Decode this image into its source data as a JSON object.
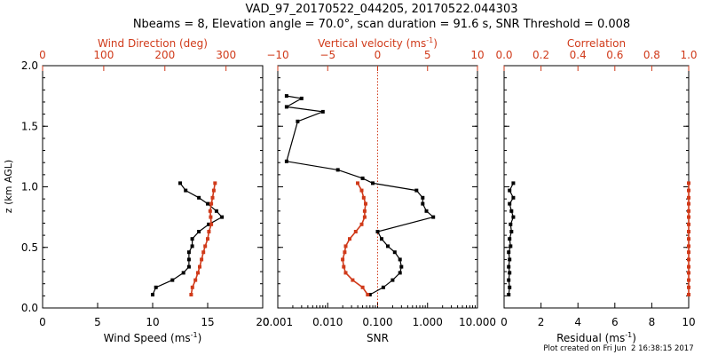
{
  "title_line1": "VAD_97_20170522_044205, 20170522.044303",
  "title_line2": "Nbeams = 8, Elevation angle = 70.0°, scan duration = 91.6 s, SNR Threshold = 0.008",
  "footer": "Plot created on Fri Jun  2 16:38:15 2017",
  "colors": {
    "primary": "#000000",
    "secondary": "#d03a1a"
  },
  "chart_data": [
    {
      "type": "line",
      "ylabel": "z (km AGL)",
      "ylim": [
        0,
        2.0
      ],
      "yticks": [
        "0.0",
        "0.5",
        "1.0",
        "1.5",
        "2.0"
      ],
      "bottom_axis": {
        "label": "Wind Speed (ms",
        "label_sup": "-1",
        "label_end": ")",
        "xlim": [
          0,
          20
        ],
        "ticks": [
          "0",
          "5",
          "10",
          "15",
          "20"
        ]
      },
      "top_axis": {
        "label": "Wind Direction (deg)",
        "xlim": [
          0,
          360
        ],
        "ticks": [
          "0",
          "100",
          "200",
          "300"
        ]
      },
      "series": [
        {
          "axis": "bottom",
          "color": "black",
          "points": [
            [
              10.0,
              0.11
            ],
            [
              10.3,
              0.17
            ],
            [
              11.8,
              0.23
            ],
            [
              12.8,
              0.29
            ],
            [
              13.3,
              0.34
            ],
            [
              13.3,
              0.4
            ],
            [
              13.3,
              0.46
            ],
            [
              13.6,
              0.51
            ],
            [
              13.6,
              0.57
            ],
            [
              14.2,
              0.63
            ],
            [
              15.1,
              0.69
            ],
            [
              16.3,
              0.75
            ],
            [
              15.8,
              0.8
            ],
            [
              15.0,
              0.86
            ],
            [
              14.2,
              0.91
            ],
            [
              13.0,
              0.97
            ],
            [
              12.5,
              1.03
            ]
          ]
        },
        {
          "axis": "top",
          "color": "red",
          "points": [
            [
              243,
              0.11
            ],
            [
              245,
              0.17
            ],
            [
              250,
              0.23
            ],
            [
              254,
              0.29
            ],
            [
              257,
              0.34
            ],
            [
              260,
              0.4
            ],
            [
              263,
              0.46
            ],
            [
              266,
              0.51
            ],
            [
              270,
              0.57
            ],
            [
              272,
              0.63
            ],
            [
              276,
              0.69
            ],
            [
              275,
              0.75
            ],
            [
              274,
              0.8
            ],
            [
              276,
              0.86
            ],
            [
              278,
              0.91
            ],
            [
              280,
              0.97
            ],
            [
              282,
              1.03
            ]
          ]
        }
      ]
    },
    {
      "type": "line",
      "bottom_axis": {
        "label": "SNR",
        "scale": "log",
        "xlim": [
          0.001,
          10
        ],
        "ticks": [
          "0.001",
          "0.010",
          "0.100",
          "1.000",
          "10.000"
        ]
      },
      "top_axis": {
        "label": "Vertical velocity (ms",
        "label_sup": "-1",
        "label_end": ")",
        "xlim": [
          -10,
          10
        ],
        "ticks": [
          "−10",
          "−5",
          "0",
          "5",
          "10"
        ]
      },
      "reference_line": {
        "axis": "top",
        "value": 0
      },
      "series": [
        {
          "axis": "bottom",
          "color": "black",
          "points": [
            [
              0.07,
              0.11
            ],
            [
              0.13,
              0.17
            ],
            [
              0.2,
              0.23
            ],
            [
              0.28,
              0.29
            ],
            [
              0.3,
              0.34
            ],
            [
              0.28,
              0.4
            ],
            [
              0.22,
              0.46
            ],
            [
              0.16,
              0.51
            ],
            [
              0.12,
              0.57
            ],
            [
              0.1,
              0.63
            ],
            [
              1.3,
              0.75
            ],
            [
              0.95,
              0.8
            ],
            [
              0.8,
              0.86
            ],
            [
              0.8,
              0.91
            ],
            [
              0.6,
              0.97
            ],
            [
              0.08,
              1.03
            ],
            [
              0.05,
              1.07
            ],
            [
              0.016,
              1.14
            ],
            [
              0.0015,
              1.21
            ],
            [
              0.0025,
              1.54
            ],
            [
              0.008,
              1.62
            ],
            [
              0.0015,
              1.66
            ],
            [
              0.003,
              1.73
            ],
            [
              0.0015,
              1.75
            ]
          ]
        },
        {
          "axis": "top",
          "color": "red",
          "points": [
            [
              -1.0,
              0.11
            ],
            [
              -1.5,
              0.17
            ],
            [
              -2.5,
              0.23
            ],
            [
              -3.2,
              0.29
            ],
            [
              -3.4,
              0.34
            ],
            [
              -3.5,
              0.4
            ],
            [
              -3.3,
              0.46
            ],
            [
              -3.2,
              0.51
            ],
            [
              -2.8,
              0.57
            ],
            [
              -2.2,
              0.63
            ],
            [
              -1.6,
              0.69
            ],
            [
              -1.3,
              0.75
            ],
            [
              -1.3,
              0.8
            ],
            [
              -1.2,
              0.86
            ],
            [
              -1.4,
              0.91
            ],
            [
              -1.6,
              0.97
            ],
            [
              -2.0,
              1.03
            ]
          ]
        }
      ]
    },
    {
      "type": "line",
      "bottom_axis": {
        "label": "Residual (ms",
        "label_sup": "-1",
        "label_end": ")",
        "xlim": [
          0,
          10
        ],
        "ticks": [
          "0",
          "2",
          "4",
          "6",
          "8",
          "10"
        ]
      },
      "top_axis": {
        "label": "Correlation",
        "xlim": [
          0,
          1.0
        ],
        "ticks": [
          "0.0",
          "0.2",
          "0.4",
          "0.6",
          "0.8",
          "1.0"
        ]
      },
      "series": [
        {
          "axis": "bottom",
          "color": "black",
          "points": [
            [
              0.25,
              0.11
            ],
            [
              0.3,
              0.17
            ],
            [
              0.25,
              0.23
            ],
            [
              0.3,
              0.29
            ],
            [
              0.25,
              0.34
            ],
            [
              0.3,
              0.4
            ],
            [
              0.25,
              0.46
            ],
            [
              0.35,
              0.51
            ],
            [
              0.3,
              0.57
            ],
            [
              0.4,
              0.63
            ],
            [
              0.35,
              0.69
            ],
            [
              0.5,
              0.75
            ],
            [
              0.4,
              0.8
            ],
            [
              0.3,
              0.86
            ],
            [
              0.5,
              0.91
            ],
            [
              0.3,
              0.97
            ],
            [
              0.5,
              1.03
            ]
          ]
        },
        {
          "axis": "top",
          "color": "red",
          "points": [
            [
              1.0,
              0.11
            ],
            [
              1.0,
              0.17
            ],
            [
              1.0,
              0.23
            ],
            [
              1.0,
              0.29
            ],
            [
              1.0,
              0.34
            ],
            [
              1.0,
              0.4
            ],
            [
              1.0,
              0.46
            ],
            [
              1.0,
              0.51
            ],
            [
              1.0,
              0.57
            ],
            [
              1.0,
              0.63
            ],
            [
              1.0,
              0.69
            ],
            [
              1.0,
              0.75
            ],
            [
              1.0,
              0.8
            ],
            [
              1.0,
              0.86
            ],
            [
              1.0,
              0.91
            ],
            [
              1.0,
              0.97
            ],
            [
              1.0,
              1.03
            ]
          ]
        }
      ]
    }
  ]
}
